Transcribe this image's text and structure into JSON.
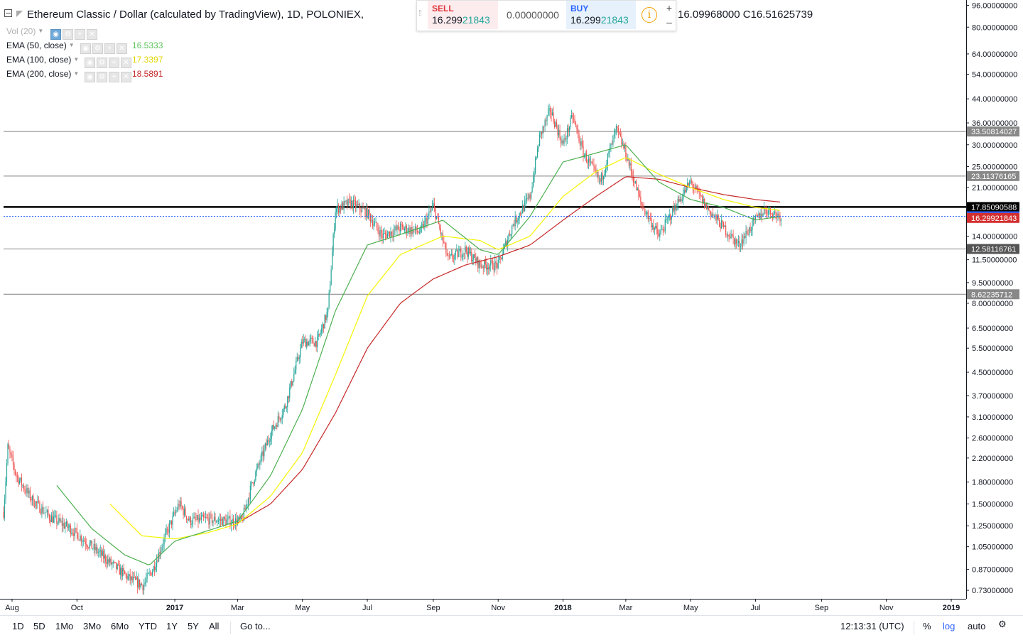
{
  "header": {
    "title": "Ethereum Classic / Dollar (calculated by TradingView), 1D, POLONIEX,",
    "ohlc_visible": "16.09968000   C16.51625739"
  },
  "indicators": [
    {
      "label": "Vol (20)",
      "value": "",
      "color": "#b0b0b0"
    },
    {
      "label": "EMA (50, close)",
      "value": "16.5333",
      "color": "#4caf50"
    },
    {
      "label": "EMA (100, close)",
      "value": "17.3397",
      "color": "#e6e600"
    },
    {
      "label": "EMA (200, close)",
      "value": "18.5891",
      "color": "#c62828"
    }
  ],
  "trade_panel": {
    "sell_label": "SELL",
    "sell_price_main": "16.299",
    "sell_price_small": "21843",
    "spread": "0.00000000",
    "buy_label": "BUY",
    "buy_price_main": "16.299",
    "buy_price_small": "21843",
    "info_icon": "i",
    "plus": "+",
    "minus": "–"
  },
  "bottom_bar": {
    "ranges": [
      "1D",
      "5D",
      "1Mo",
      "3Mo",
      "6Mo",
      "YTD",
      "1Y",
      "5Y",
      "All"
    ],
    "goto": "Go to...",
    "time": "12:13:31 (UTC)",
    "percent": "%",
    "log": "log",
    "auto": "auto",
    "settings_icon": "gear-icon"
  },
  "colors": {
    "up": "#26a69a",
    "down": "#ef5350",
    "ema50": "#4caf50",
    "ema100": "#f5f500",
    "ema200": "#c62828",
    "last_price_tag": "#2962ff",
    "sell_tag": "#d32f2f",
    "level_tag": "#555555"
  },
  "chart_data": {
    "type": "candlestick",
    "title": "Ethereum Classic / Dollar (calculated by TradingView), 1D, POLONIEX",
    "yscale": "log",
    "ylim": [
      0.68,
      98
    ],
    "xlim": [
      "2016-07-24",
      "2019-01-15"
    ],
    "x_ticks": [
      {
        "date": "2016-08-01",
        "label": "Aug",
        "bold": false
      },
      {
        "date": "2016-10-01",
        "label": "Oct",
        "bold": false
      },
      {
        "date": "2017-01-01",
        "label": "2017",
        "bold": true
      },
      {
        "date": "2017-03-01",
        "label": "Mar",
        "bold": false
      },
      {
        "date": "2017-05-01",
        "label": "May",
        "bold": false
      },
      {
        "date": "2017-07-01",
        "label": "Jul",
        "bold": false
      },
      {
        "date": "2017-09-01",
        "label": "Sep",
        "bold": false
      },
      {
        "date": "2017-11-01",
        "label": "Nov",
        "bold": false
      },
      {
        "date": "2018-01-01",
        "label": "2018",
        "bold": true
      },
      {
        "date": "2018-03-01",
        "label": "Mar",
        "bold": false
      },
      {
        "date": "2018-05-01",
        "label": "May",
        "bold": false
      },
      {
        "date": "2018-07-01",
        "label": "Jul",
        "bold": false
      },
      {
        "date": "2018-09-01",
        "label": "Sep",
        "bold": false
      },
      {
        "date": "2018-11-01",
        "label": "Nov",
        "bold": false
      },
      {
        "date": "2019-01-01",
        "label": "2019",
        "bold": true
      }
    ],
    "y_ticks": [
      96,
      80,
      64,
      54,
      44,
      36,
      30,
      25,
      21,
      17.5,
      14,
      11.5,
      9.5,
      8,
      6.5,
      5.5,
      4.5,
      3.7,
      3.1,
      2.6,
      2.2,
      1.8,
      1.5,
      1.25,
      1.05,
      0.87,
      0.73
    ],
    "y_tick_labels": [
      "96.00000000",
      "80.00000000",
      "64.00000000",
      "54.00000000",
      "44.00000000",
      "36.00000000",
      "30.00000000",
      "25.00000000",
      "21.00000000",
      "17.50000000",
      "14.00000000",
      "11.50000000",
      "9.50000000",
      "8.00000000",
      "6.50000000",
      "5.50000000",
      "4.50000000",
      "3.70000000",
      "3.10000000",
      "2.60000000",
      "2.20000000",
      "1.80000000",
      "1.50000000",
      "1.25000000",
      "1.05000000",
      "0.87000000",
      "0.73000000"
    ],
    "horizontal_levels": [
      {
        "value": 33.50814027,
        "label": "33.50814027",
        "width": 1,
        "tag": "#888888"
      },
      {
        "value": 23.11376165,
        "label": "23.11376165",
        "width": 1,
        "tag": "#888888"
      },
      {
        "value": 17.85090588,
        "label": "17.85090588",
        "width": 2.5,
        "tag": "#000000"
      },
      {
        "value": 12.58116761,
        "label": "12.58116761",
        "width": 1,
        "tag": "#555555"
      },
      {
        "value": 8.62235712,
        "label": "8.62235712",
        "width": 1,
        "tag": "#888888"
      }
    ],
    "last_price": {
      "value": 16.51625739,
      "label": "16.51625739"
    },
    "sell_price": {
      "value": 16.29921843,
      "label": "16.29921843"
    },
    "price_anchors": [
      {
        "date": "2016-07-24",
        "price": 1.4
      },
      {
        "date": "2016-07-28",
        "price": 2.4
      },
      {
        "date": "2016-08-05",
        "price": 1.9
      },
      {
        "date": "2016-08-20",
        "price": 1.55
      },
      {
        "date": "2016-09-05",
        "price": 1.35
      },
      {
        "date": "2016-09-25",
        "price": 1.22
      },
      {
        "date": "2016-10-15",
        "price": 1.05
      },
      {
        "date": "2016-11-01",
        "price": 0.92
      },
      {
        "date": "2016-11-20",
        "price": 0.8
      },
      {
        "date": "2016-12-02",
        "price": 0.76
      },
      {
        "date": "2016-12-12",
        "price": 0.88
      },
      {
        "date": "2016-12-22",
        "price": 1.12
      },
      {
        "date": "2017-01-05",
        "price": 1.5
      },
      {
        "date": "2017-01-15",
        "price": 1.3
      },
      {
        "date": "2017-02-01",
        "price": 1.32
      },
      {
        "date": "2017-02-20",
        "price": 1.3
      },
      {
        "date": "2017-03-05",
        "price": 1.3
      },
      {
        "date": "2017-03-15",
        "price": 1.8
      },
      {
        "date": "2017-04-01",
        "price": 2.7
      },
      {
        "date": "2017-04-15",
        "price": 3.4
      },
      {
        "date": "2017-05-01",
        "price": 5.8
      },
      {
        "date": "2017-05-15",
        "price": 5.8
      },
      {
        "date": "2017-05-25",
        "price": 7.5
      },
      {
        "date": "2017-06-01",
        "price": 17.5
      },
      {
        "date": "2017-06-15",
        "price": 18.5
      },
      {
        "date": "2017-07-01",
        "price": 17.0
      },
      {
        "date": "2017-07-15",
        "price": 14.0
      },
      {
        "date": "2017-08-01",
        "price": 15.0
      },
      {
        "date": "2017-08-20",
        "price": 14.5
      },
      {
        "date": "2017-09-01",
        "price": 18.0
      },
      {
        "date": "2017-09-15",
        "price": 11.5
      },
      {
        "date": "2017-10-01",
        "price": 12.5
      },
      {
        "date": "2017-10-15",
        "price": 11.0
      },
      {
        "date": "2017-11-01",
        "price": 11.0
      },
      {
        "date": "2017-11-15",
        "price": 15.5
      },
      {
        "date": "2017-12-01",
        "price": 19.5
      },
      {
        "date": "2017-12-10",
        "price": 32.0
      },
      {
        "date": "2017-12-20",
        "price": 40.0
      },
      {
        "date": "2018-01-01",
        "price": 30.0
      },
      {
        "date": "2018-01-10",
        "price": 38.0
      },
      {
        "date": "2018-01-20",
        "price": 28.0
      },
      {
        "date": "2018-02-05",
        "price": 22.0
      },
      {
        "date": "2018-02-20",
        "price": 34.0
      },
      {
        "date": "2018-03-01",
        "price": 28.0
      },
      {
        "date": "2018-03-15",
        "price": 18.5
      },
      {
        "date": "2018-04-01",
        "price": 14.0
      },
      {
        "date": "2018-04-15",
        "price": 17.5
      },
      {
        "date": "2018-05-01",
        "price": 22.0
      },
      {
        "date": "2018-05-15",
        "price": 18.0
      },
      {
        "date": "2018-06-01",
        "price": 15.0
      },
      {
        "date": "2018-06-15",
        "price": 13.0
      },
      {
        "date": "2018-07-01",
        "price": 16.0
      },
      {
        "date": "2018-07-10",
        "price": 17.5
      },
      {
        "date": "2018-07-25",
        "price": 16.5
      }
    ],
    "ema50_anchors": [
      {
        "date": "2016-09-12",
        "price": 1.75
      },
      {
        "date": "2016-10-15",
        "price": 1.22
      },
      {
        "date": "2016-11-15",
        "price": 0.98
      },
      {
        "date": "2016-12-08",
        "price": 0.9
      },
      {
        "date": "2017-01-01",
        "price": 1.1
      },
      {
        "date": "2017-02-01",
        "price": 1.2
      },
      {
        "date": "2017-03-01",
        "price": 1.3
      },
      {
        "date": "2017-04-01",
        "price": 1.9
      },
      {
        "date": "2017-05-01",
        "price": 3.3
      },
      {
        "date": "2017-06-01",
        "price": 7.5
      },
      {
        "date": "2017-07-01",
        "price": 13.0
      },
      {
        "date": "2017-08-01",
        "price": 14.2
      },
      {
        "date": "2017-09-10",
        "price": 16.0
      },
      {
        "date": "2017-10-15",
        "price": 12.5
      },
      {
        "date": "2017-11-01",
        "price": 12.0
      },
      {
        "date": "2017-12-01",
        "price": 16.5
      },
      {
        "date": "2018-01-01",
        "price": 26.0
      },
      {
        "date": "2018-02-01",
        "price": 28.0
      },
      {
        "date": "2018-03-01",
        "price": 30.0
      },
      {
        "date": "2018-04-01",
        "price": 22.0
      },
      {
        "date": "2018-05-01",
        "price": 19.0
      },
      {
        "date": "2018-06-01",
        "price": 17.8
      },
      {
        "date": "2018-07-01",
        "price": 16.0
      },
      {
        "date": "2018-07-25",
        "price": 16.53
      }
    ],
    "ema100_anchors": [
      {
        "date": "2016-11-01",
        "price": 1.5
      },
      {
        "date": "2016-12-01",
        "price": 1.15
      },
      {
        "date": "2017-01-01",
        "price": 1.12
      },
      {
        "date": "2017-02-01",
        "price": 1.18
      },
      {
        "date": "2017-03-01",
        "price": 1.27
      },
      {
        "date": "2017-04-01",
        "price": 1.6
      },
      {
        "date": "2017-05-01",
        "price": 2.3
      },
      {
        "date": "2017-06-01",
        "price": 4.4
      },
      {
        "date": "2017-07-01",
        "price": 8.5
      },
      {
        "date": "2017-08-01",
        "price": 12.0
      },
      {
        "date": "2017-09-10",
        "price": 14.0
      },
      {
        "date": "2017-10-15",
        "price": 13.5
      },
      {
        "date": "2017-11-01",
        "price": 12.5
      },
      {
        "date": "2017-12-01",
        "price": 14.0
      },
      {
        "date": "2018-01-01",
        "price": 19.5
      },
      {
        "date": "2018-02-01",
        "price": 24.0
      },
      {
        "date": "2018-03-01",
        "price": 27.0
      },
      {
        "date": "2018-04-01",
        "price": 23.5
      },
      {
        "date": "2018-05-01",
        "price": 21.0
      },
      {
        "date": "2018-06-01",
        "price": 19.0
      },
      {
        "date": "2018-07-01",
        "price": 17.8
      },
      {
        "date": "2018-07-25",
        "price": 17.34
      }
    ],
    "ema200_anchors": [
      {
        "date": "2017-03-01",
        "price": 1.28
      },
      {
        "date": "2017-04-01",
        "price": 1.5
      },
      {
        "date": "2017-05-01",
        "price": 2.0
      },
      {
        "date": "2017-06-01",
        "price": 3.2
      },
      {
        "date": "2017-07-01",
        "price": 5.5
      },
      {
        "date": "2017-08-01",
        "price": 8.0
      },
      {
        "date": "2017-09-01",
        "price": 9.8
      },
      {
        "date": "2017-10-01",
        "price": 11.0
      },
      {
        "date": "2017-11-01",
        "price": 11.8
      },
      {
        "date": "2017-12-01",
        "price": 13.0
      },
      {
        "date": "2018-01-01",
        "price": 16.0
      },
      {
        "date": "2018-02-01",
        "price": 19.5
      },
      {
        "date": "2018-03-01",
        "price": 23.0
      },
      {
        "date": "2018-04-01",
        "price": 22.5
      },
      {
        "date": "2018-05-01",
        "price": 21.0
      },
      {
        "date": "2018-06-01",
        "price": 19.8
      },
      {
        "date": "2018-07-01",
        "price": 19.0
      },
      {
        "date": "2018-07-25",
        "price": 18.59
      }
    ]
  }
}
